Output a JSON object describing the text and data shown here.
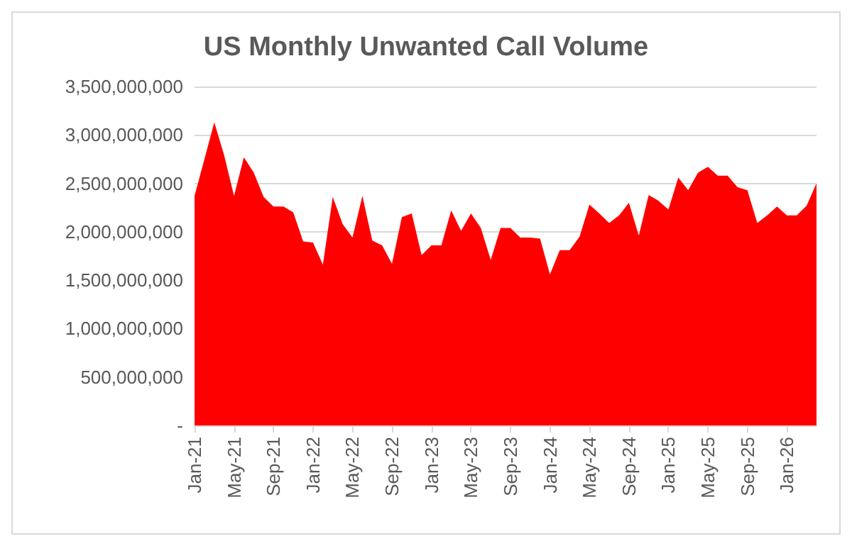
{
  "chart_data": {
    "type": "area",
    "title": "US Monthly Unwanted Call Volume",
    "categories": [
      "Jan-21",
      null,
      null,
      null,
      "May-21",
      null,
      null,
      null,
      "Sep-21",
      null,
      null,
      null,
      "Jan-22",
      null,
      null,
      null,
      "May-22",
      null,
      null,
      null,
      "Sep-22",
      null,
      null,
      null,
      "Jan-23",
      null,
      null,
      null,
      "May-23",
      null,
      null,
      null,
      "Sep-23",
      null,
      null,
      null,
      "Jan-24",
      null,
      null,
      null,
      "May-24",
      null,
      null,
      null,
      "Sep-24",
      null,
      null,
      null,
      "Jan-25",
      null,
      null,
      null,
      "May-25",
      null,
      null,
      null,
      "Sep-25",
      null,
      null,
      null,
      "Jan-26",
      null,
      null,
      null
    ],
    "values": [
      2370000000,
      2750000000,
      3130000000,
      2790000000,
      2370000000,
      2770000000,
      2610000000,
      2360000000,
      2260000000,
      2260000000,
      2200000000,
      1900000000,
      1890000000,
      1660000000,
      2360000000,
      2080000000,
      1940000000,
      2370000000,
      1910000000,
      1860000000,
      1670000000,
      2150000000,
      2190000000,
      1760000000,
      1860000000,
      1860000000,
      2220000000,
      2010000000,
      2190000000,
      2040000000,
      1710000000,
      2040000000,
      2040000000,
      1940000000,
      1940000000,
      1930000000,
      1560000000,
      1810000000,
      1810000000,
      1950000000,
      2280000000,
      2190000000,
      2090000000,
      2170000000,
      2300000000,
      1960000000,
      2380000000,
      2320000000,
      2230000000,
      2560000000,
      2430000000,
      2610000000,
      2670000000,
      2580000000,
      2580000000,
      2460000000,
      2430000000,
      2090000000,
      2170000000,
      2260000000,
      2170000000,
      2170000000,
      2270000000,
      2500000000
    ],
    "color": "#ff0000",
    "ylim": [
      0,
      3500000000
    ],
    "yticks": [
      {
        "value": 0,
        "label": "-"
      },
      {
        "value": 500000000,
        "label": "500,000,000"
      },
      {
        "value": 1000000000,
        "label": "1,000,000,000"
      },
      {
        "value": 1500000000,
        "label": "1,500,000,000"
      },
      {
        "value": 2000000000,
        "label": "2,000,000,000"
      },
      {
        "value": 2500000000,
        "label": "2,500,000,000"
      },
      {
        "value": 3000000000,
        "label": "3,000,000,000"
      },
      {
        "value": 3500000000,
        "label": "3,500,000,000"
      }
    ],
    "grid": true
  }
}
